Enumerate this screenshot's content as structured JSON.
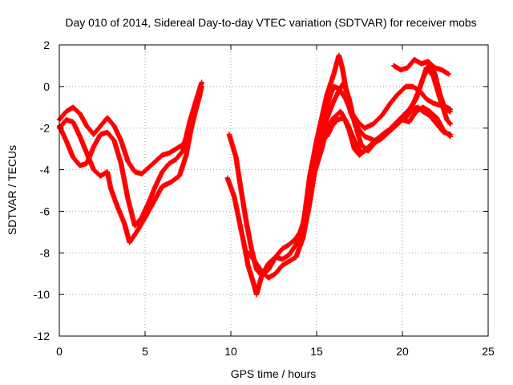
{
  "chart_data": {
    "type": "scatter",
    "title": "Day 010 of 2014, Sidereal Day-to-day VTEC variation (SDTVAR) for receiver mobs",
    "xlabel": "GPS time / hours",
    "ylabel": "SDTVAR / TECUs",
    "xlim": [
      0,
      25
    ],
    "ylim": [
      -12,
      2
    ],
    "xticks": [
      "0",
      "5",
      "10",
      "15",
      "20",
      "25"
    ],
    "yticks": [
      "2",
      "0",
      "-2",
      "-4",
      "-6",
      "-8",
      "-10",
      "-12"
    ],
    "grid": true,
    "marker": "plus",
    "series_color": "#ff0000",
    "series": [
      {
        "name": "track-1",
        "points": [
          [
            0.0,
            -1.6
          ],
          [
            0.4,
            -1.2
          ],
          [
            0.8,
            -1.0
          ],
          [
            1.2,
            -1.3
          ],
          [
            1.6,
            -1.9
          ],
          [
            2.0,
            -2.3
          ],
          [
            2.4,
            -1.9
          ],
          [
            2.8,
            -1.5
          ],
          [
            3.2,
            -1.9
          ],
          [
            3.6,
            -2.6
          ],
          [
            4.0,
            -3.6
          ],
          [
            4.4,
            -4.1
          ],
          [
            4.8,
            -4.2
          ],
          [
            5.2,
            -3.9
          ],
          [
            5.6,
            -3.6
          ],
          [
            6.0,
            -3.3
          ],
          [
            6.4,
            -3.2
          ],
          [
            6.8,
            -3.0
          ],
          [
            7.2,
            -2.8
          ],
          [
            7.6,
            -2.3
          ],
          [
            8.0,
            -1.0
          ],
          [
            8.3,
            0.0
          ]
        ]
      },
      {
        "name": "track-2",
        "points": [
          [
            0.0,
            -1.9
          ],
          [
            0.4,
            -2.6
          ],
          [
            0.8,
            -3.4
          ],
          [
            1.2,
            -3.8
          ],
          [
            1.6,
            -3.7
          ],
          [
            2.0,
            -2.9
          ],
          [
            2.4,
            -2.3
          ],
          [
            2.8,
            -2.2
          ],
          [
            3.2,
            -2.6
          ],
          [
            3.6,
            -3.7
          ],
          [
            4.0,
            -5.4
          ],
          [
            4.4,
            -6.7
          ],
          [
            4.8,
            -6.3
          ],
          [
            5.2,
            -5.6
          ],
          [
            5.6,
            -4.8
          ],
          [
            6.0,
            -4.1
          ],
          [
            6.4,
            -3.7
          ],
          [
            6.8,
            -3.5
          ],
          [
            7.2,
            -3.1
          ],
          [
            7.6,
            -1.7
          ],
          [
            8.0,
            -0.6
          ],
          [
            8.3,
            0.2
          ]
        ]
      },
      {
        "name": "track-3",
        "points": [
          [
            0.0,
            -2.0
          ],
          [
            0.4,
            -1.6
          ],
          [
            0.8,
            -1.7
          ],
          [
            1.2,
            -2.4
          ],
          [
            1.6,
            -3.2
          ],
          [
            2.0,
            -4.0
          ],
          [
            2.4,
            -4.3
          ],
          [
            2.8,
            -4.1
          ],
          [
            3.0,
            -4.9
          ],
          [
            3.4,
            -5.8
          ],
          [
            3.8,
            -6.6
          ],
          [
            4.1,
            -7.5
          ],
          [
            4.5,
            -7.0
          ],
          [
            5.0,
            -6.3
          ],
          [
            5.6,
            -5.4
          ],
          [
            6.0,
            -4.8
          ],
          [
            6.5,
            -4.6
          ],
          [
            7.0,
            -4.3
          ],
          [
            7.4,
            -3.3
          ],
          [
            7.8,
            -1.5
          ],
          [
            8.2,
            -0.4
          ]
        ]
      },
      {
        "name": "track-4",
        "points": [
          [
            9.9,
            -2.3
          ],
          [
            10.3,
            -3.4
          ],
          [
            10.6,
            -5.0
          ],
          [
            10.9,
            -6.5
          ],
          [
            11.2,
            -7.8
          ],
          [
            11.5,
            -8.8
          ],
          [
            11.8,
            -9.1
          ],
          [
            12.2,
            -8.8
          ],
          [
            12.6,
            -8.2
          ],
          [
            13.0,
            -7.8
          ],
          [
            13.4,
            -7.6
          ],
          [
            13.8,
            -7.3
          ],
          [
            14.2,
            -6.8
          ],
          [
            14.6,
            -4.3
          ],
          [
            15.0,
            -2.6
          ],
          [
            15.3,
            -1.5
          ],
          [
            15.6,
            -0.4
          ],
          [
            16.0,
            0.6
          ],
          [
            16.3,
            1.5
          ],
          [
            16.5,
            0.9
          ],
          [
            16.8,
            -0.6
          ],
          [
            17.0,
            -1.3
          ],
          [
            17.4,
            -2.0
          ],
          [
            17.8,
            -2.4
          ],
          [
            18.4,
            -2.6
          ],
          [
            19.0,
            -2.2
          ],
          [
            19.6,
            -1.9
          ],
          [
            20.2,
            -1.4
          ],
          [
            20.6,
            -0.9
          ],
          [
            21.0,
            -0.1
          ],
          [
            21.4,
            0.9
          ],
          [
            21.8,
            0.5
          ],
          [
            22.2,
            -0.6
          ],
          [
            22.6,
            -1.6
          ],
          [
            22.8,
            -1.8
          ]
        ]
      },
      {
        "name": "track-5",
        "points": [
          [
            9.8,
            -4.4
          ],
          [
            10.2,
            -5.3
          ],
          [
            10.5,
            -6.5
          ],
          [
            10.8,
            -7.7
          ],
          [
            11.0,
            -8.6
          ],
          [
            11.3,
            -9.4
          ],
          [
            11.5,
            -10.0
          ],
          [
            11.8,
            -9.1
          ],
          [
            12.2,
            -8.5
          ],
          [
            12.6,
            -8.2
          ],
          [
            13.0,
            -8.3
          ],
          [
            13.4,
            -8.1
          ],
          [
            13.8,
            -7.6
          ],
          [
            14.2,
            -6.6
          ],
          [
            14.6,
            -4.9
          ],
          [
            15.0,
            -3.8
          ],
          [
            15.3,
            -3.0
          ],
          [
            15.6,
            -2.0
          ],
          [
            16.0,
            -1.5
          ],
          [
            16.4,
            -1.2
          ],
          [
            16.8,
            -1.8
          ],
          [
            17.2,
            -2.6
          ],
          [
            17.6,
            -3.2
          ],
          [
            18.0,
            -3.0
          ],
          [
            18.6,
            -2.5
          ],
          [
            19.2,
            -2.1
          ],
          [
            19.8,
            -1.6
          ],
          [
            20.4,
            -1.1
          ],
          [
            20.8,
            -0.6
          ],
          [
            21.2,
            0.4
          ],
          [
            21.6,
            1.1
          ],
          [
            21.9,
            0.6
          ],
          [
            22.2,
            -0.4
          ],
          [
            22.5,
            -1.1
          ],
          [
            22.8,
            -1.2
          ]
        ]
      },
      {
        "name": "track-6",
        "points": [
          [
            11.0,
            -8.0
          ],
          [
            11.4,
            -8.4
          ],
          [
            11.8,
            -8.9
          ],
          [
            12.2,
            -9.2
          ],
          [
            12.6,
            -9.0
          ],
          [
            13.0,
            -8.6
          ],
          [
            13.4,
            -8.4
          ],
          [
            13.8,
            -8.2
          ],
          [
            14.2,
            -7.3
          ],
          [
            14.6,
            -5.6
          ],
          [
            15.0,
            -3.5
          ],
          [
            15.4,
            -2.0
          ],
          [
            15.8,
            -1.1
          ],
          [
            16.0,
            -0.7
          ],
          [
            16.3,
            -0.2
          ],
          [
            16.6,
            0.2
          ],
          [
            16.9,
            -0.6
          ],
          [
            17.2,
            -1.7
          ],
          [
            17.6,
            -2.8
          ],
          [
            18.0,
            -3.1
          ],
          [
            18.4,
            -2.7
          ],
          [
            18.8,
            -2.5
          ],
          [
            19.2,
            -2.2
          ],
          [
            19.6,
            -1.9
          ],
          [
            20.0,
            -1.6
          ],
          [
            20.4,
            -1.7
          ],
          [
            20.8,
            -1.2
          ],
          [
            21.2,
            -1.0
          ],
          [
            21.6,
            -1.2
          ],
          [
            22.0,
            -1.5
          ],
          [
            22.4,
            -2.1
          ],
          [
            22.8,
            -2.4
          ]
        ]
      },
      {
        "name": "track-7",
        "points": [
          [
            15.6,
            -2.4
          ],
          [
            15.9,
            -1.9
          ],
          [
            16.2,
            -1.6
          ],
          [
            16.6,
            -1.5
          ],
          [
            16.9,
            -2.1
          ],
          [
            17.2,
            -3.0
          ],
          [
            17.5,
            -3.3
          ],
          [
            17.9,
            -3.0
          ],
          [
            18.4,
            -2.6
          ],
          [
            19.0,
            -2.3
          ],
          [
            19.6,
            -1.8
          ],
          [
            20.2,
            -1.5
          ],
          [
            20.6,
            -1.1
          ],
          [
            20.9,
            -1.0
          ],
          [
            21.2,
            -1.2
          ],
          [
            21.6,
            -1.4
          ],
          [
            22.0,
            -1.8
          ],
          [
            22.4,
            -2.2
          ],
          [
            22.8,
            -2.3
          ]
        ]
      },
      {
        "name": "track-8",
        "points": [
          [
            15.2,
            -2.0
          ],
          [
            15.5,
            -1.2
          ],
          [
            15.8,
            -0.4
          ],
          [
            16.0,
            0.0
          ],
          [
            16.3,
            -0.1
          ],
          [
            16.7,
            -0.6
          ],
          [
            17.0,
            -1.2
          ],
          [
            17.4,
            -1.7
          ],
          [
            17.8,
            -2.0
          ],
          [
            18.3,
            -1.8
          ],
          [
            18.8,
            -1.4
          ],
          [
            19.3,
            -0.8
          ],
          [
            19.7,
            -0.4
          ],
          [
            20.2,
            0.0
          ],
          [
            20.6,
            0.0
          ],
          [
            21.0,
            -0.2
          ],
          [
            21.4,
            -0.6
          ],
          [
            21.8,
            -0.8
          ],
          [
            22.2,
            -0.9
          ],
          [
            22.6,
            -1.0
          ],
          [
            22.8,
            -1.1
          ]
        ]
      },
      {
        "name": "track-9",
        "points": [
          [
            19.5,
            1.0
          ],
          [
            19.9,
            0.8
          ],
          [
            20.3,
            0.9
          ],
          [
            20.7,
            1.3
          ],
          [
            21.1,
            1.1
          ],
          [
            21.5,
            1.2
          ],
          [
            21.9,
            0.9
          ],
          [
            22.3,
            0.8
          ],
          [
            22.7,
            0.6
          ]
        ]
      }
    ]
  }
}
